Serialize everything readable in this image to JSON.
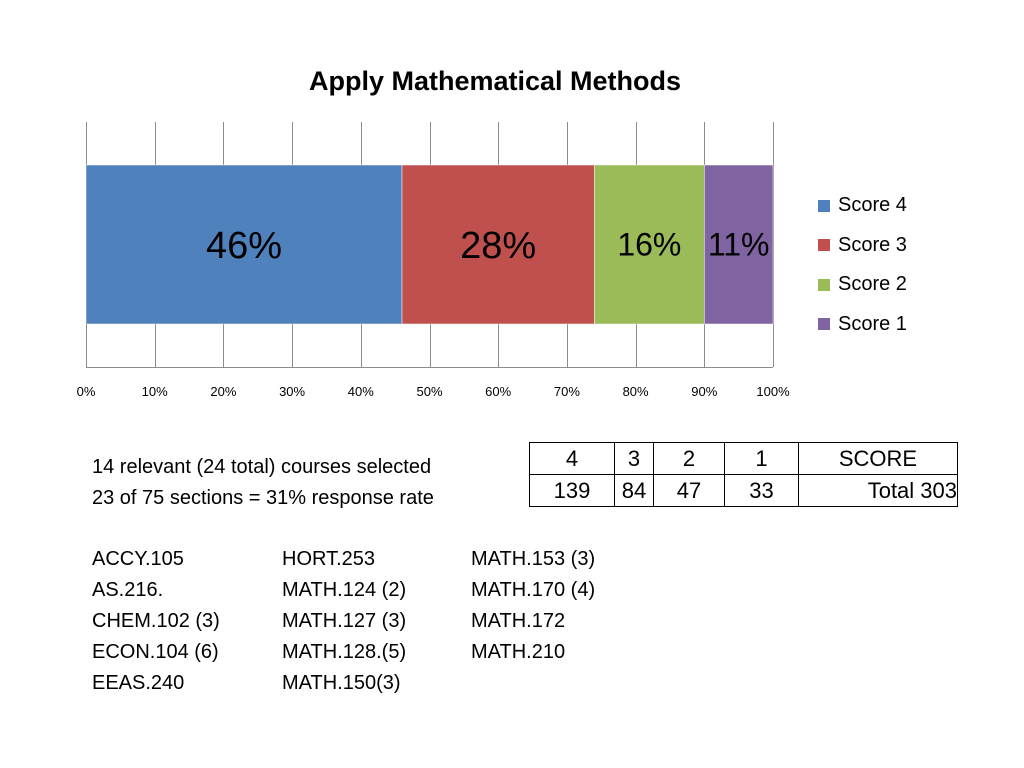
{
  "chart_data": {
    "type": "bar",
    "orientation": "horizontal",
    "stacked": true,
    "title": "Apply Mathematical Methods",
    "series": [
      {
        "name": "Score 4",
        "value": 46,
        "label": "46%",
        "color": "#4f81bd"
      },
      {
        "name": "Score 3",
        "value": 28,
        "label": "28%",
        "color": "#c0504d"
      },
      {
        "name": "Score 2",
        "value": 16,
        "label": "16%",
        "color": "#9bbb59"
      },
      {
        "name": "Score 1",
        "value": 11,
        "label": "11%",
        "color": "#8064a2"
      }
    ],
    "xlim": [
      0,
      100
    ],
    "x_ticks": [
      "0%",
      "10%",
      "20%",
      "30%",
      "40%",
      "50%",
      "60%",
      "70%",
      "80%",
      "90%",
      "100%"
    ],
    "grid": true,
    "legend_position": "right"
  },
  "info": {
    "line1": "14 relevant (24 total) courses selected",
    "line2": "23 of 75 sections = 31% response rate"
  },
  "score_table": {
    "headers": [
      "4",
      "3",
      "2",
      "1",
      "SCORE"
    ],
    "values": [
      "139",
      "84",
      "47",
      "33",
      "Total 303"
    ]
  },
  "courses": [
    [
      "ACCY.105",
      "AS.216.",
      "CHEM.102 (3)",
      "ECON.104 (6)",
      "EEAS.240"
    ],
    [
      "HORT.253",
      "MATH.124 (2)",
      "MATH.127 (3)",
      "MATH.128.(5)",
      "MATH.150(3)"
    ],
    [
      "MATH.153 (3)",
      "MATH.170 (4)",
      "MATH.172",
      "MATH.210"
    ]
  ]
}
